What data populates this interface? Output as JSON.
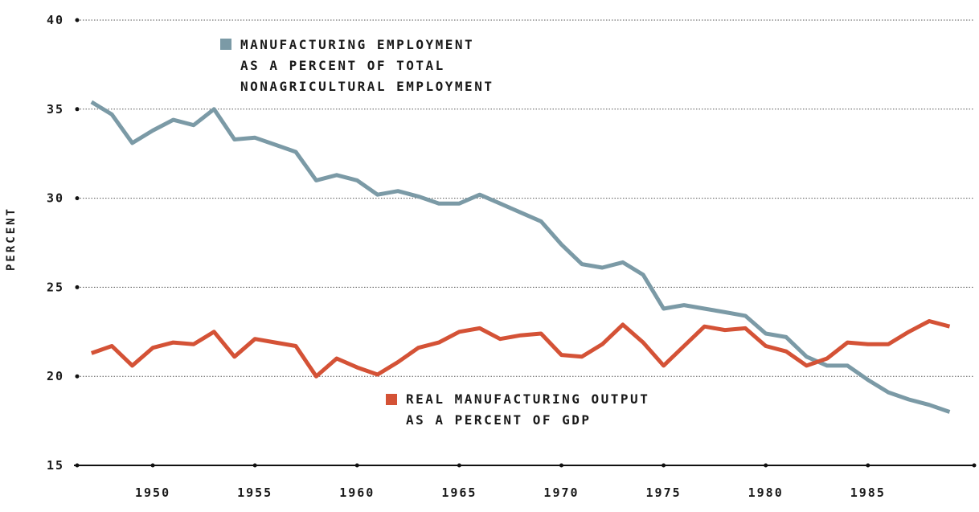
{
  "chart_data": {
    "type": "line",
    "title": "",
    "xlabel": "",
    "ylabel": "PERCENT",
    "ylim": [
      15,
      40
    ],
    "xlim": [
      1946.3,
      1990.2
    ],
    "x_ticks": [
      "1950",
      "1955",
      "1960",
      "1965",
      "1970",
      "1975",
      "1980",
      "1985"
    ],
    "y_ticks": [
      "40",
      "35",
      "30",
      "25",
      "20",
      "15"
    ],
    "grid": true,
    "x": [
      1947,
      1948,
      1949,
      1950,
      1951,
      1952,
      1953,
      1954,
      1955,
      1956,
      1957,
      1958,
      1959,
      1960,
      1961,
      1962,
      1963,
      1964,
      1965,
      1966,
      1967,
      1968,
      1969,
      1970,
      1971,
      1972,
      1973,
      1974,
      1975,
      1976,
      1977,
      1978,
      1979,
      1980,
      1981,
      1982,
      1983,
      1984,
      1985,
      1986,
      1987,
      1988,
      1989
    ],
    "series": [
      {
        "name": "MANUFACTURING EMPLOYMENT AS A PERCENT OF TOTAL NONAGRICULTURAL EMPLOYMENT",
        "color": "#7b9aa6",
        "values": [
          35.4,
          34.7,
          33.1,
          33.8,
          34.4,
          34.1,
          35.0,
          33.3,
          33.4,
          33.0,
          32.6,
          31.0,
          31.3,
          31.0,
          30.2,
          30.4,
          30.1,
          29.7,
          29.7,
          30.2,
          29.7,
          29.2,
          28.7,
          27.4,
          26.3,
          26.1,
          26.4,
          25.7,
          23.8,
          24.0,
          23.8,
          23.6,
          23.4,
          22.4,
          22.2,
          21.1,
          20.6,
          20.6,
          19.8,
          19.1,
          18.7,
          18.4,
          18.0
        ]
      },
      {
        "name": "REAL MANUFACTURING OUTPUT AS A PERCENT OF GDP",
        "color": "#d45236",
        "values": [
          21.3,
          21.7,
          20.6,
          21.6,
          21.9,
          21.8,
          22.5,
          21.1,
          22.1,
          21.9,
          21.7,
          20.0,
          21.0,
          20.5,
          20.1,
          20.8,
          21.6,
          21.9,
          22.5,
          22.7,
          22.1,
          22.3,
          22.4,
          21.2,
          21.1,
          21.8,
          22.9,
          21.9,
          20.6,
          21.7,
          22.8,
          22.6,
          22.7,
          21.7,
          21.4,
          20.6,
          21.0,
          21.9,
          21.8,
          21.8,
          22.5,
          23.1,
          22.8
        ]
      }
    ],
    "legend": [
      {
        "lines": [
          "MANUFACTURING EMPLOYMENT",
          "AS A PERCENT OF TOTAL",
          "NONAGRICULTURAL EMPLOYMENT"
        ],
        "color": "#7b9aa6"
      },
      {
        "lines": [
          "REAL MANUFACTURING OUTPUT",
          "AS A PERCENT OF GDP"
        ],
        "color": "#d45236"
      }
    ]
  }
}
